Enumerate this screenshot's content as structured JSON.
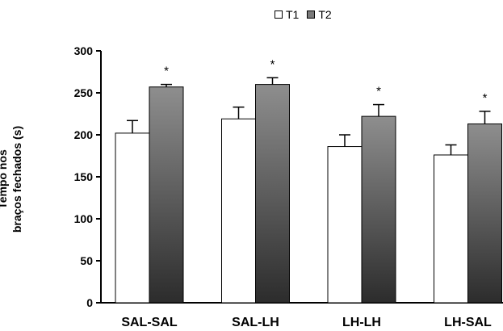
{
  "chart_data": {
    "type": "bar",
    "categories": [
      "SAL-SAL",
      "SAL-LH",
      "LH-LH",
      "LH-SAL"
    ],
    "series": [
      {
        "name": "T1",
        "values": [
          202,
          219,
          186,
          176
        ],
        "errors": [
          15,
          14,
          14,
          12
        ],
        "color": "#ffffff"
      },
      {
        "name": "T2",
        "values": [
          257,
          260,
          222,
          213
        ],
        "errors": [
          3,
          8,
          14,
          15
        ],
        "color": "#7a7a7a"
      }
    ],
    "significance": [
      "*",
      "*",
      "*",
      "*"
    ],
    "ylabel_lines": [
      "Tempo nos",
      "braços fechados (s)"
    ],
    "ylim": [
      0,
      300
    ],
    "yticks": [
      "0",
      "50",
      "100",
      "150",
      "200",
      "250",
      "300"
    ],
    "legend_position": "top-center",
    "grid": false
  }
}
